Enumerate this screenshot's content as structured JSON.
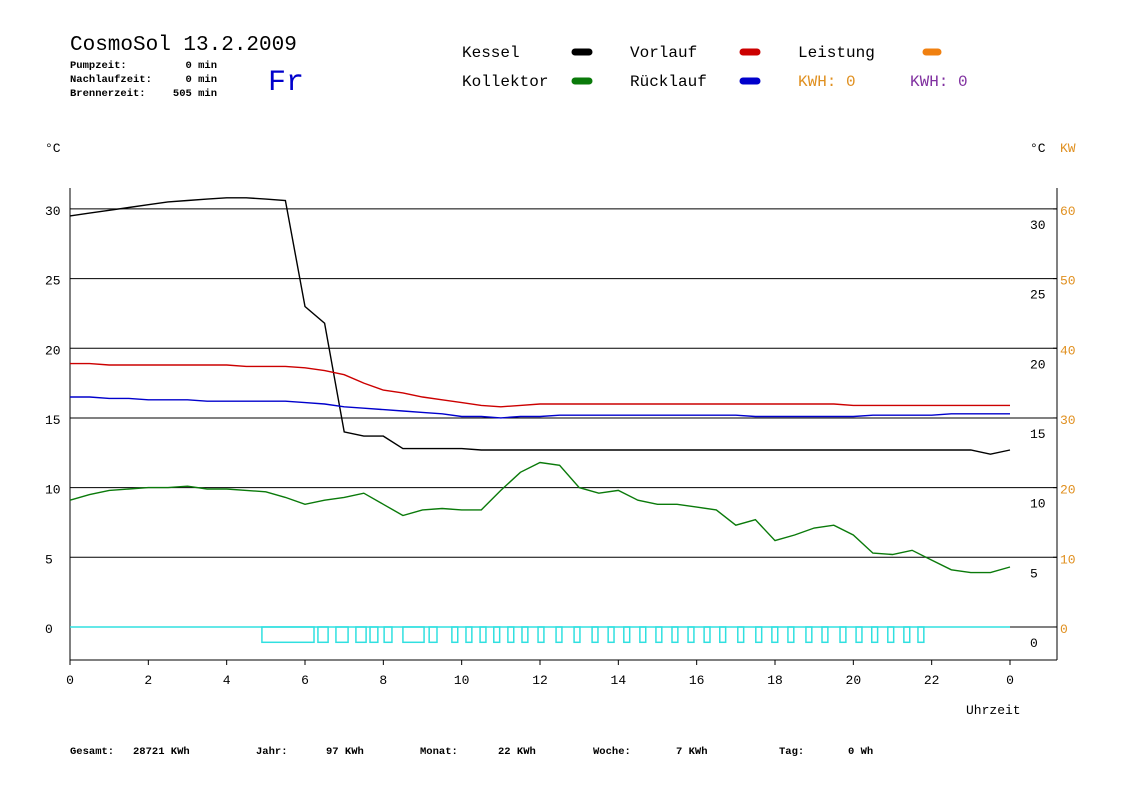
{
  "header": {
    "title": "CosmoSol 13.2.2009",
    "day": "Fr",
    "stats": [
      {
        "label": "Pumpzeit:",
        "value": "0 min"
      },
      {
        "label": "Nachlaufzeit:",
        "value": "0 min"
      },
      {
        "label": "Brennerzeit:",
        "value": "505 min"
      }
    ]
  },
  "footer": [
    {
      "label": "Gesamt:",
      "value": "28721 KWh"
    },
    {
      "label": "Jahr:",
      "value": "97 KWh"
    },
    {
      "label": "Monat:",
      "value": "22 KWh"
    },
    {
      "label": "Woche:",
      "value": "7 KWh"
    },
    {
      "label": "Tag:",
      "value": "0 Wh"
    }
  ],
  "chart_data": {
    "type": "line",
    "y_label": "°C",
    "y2_label": "°C",
    "y2_unit": "KW",
    "x_label": "Uhrzeit",
    "x": [
      0,
      0.5,
      1,
      1.5,
      2,
      2.5,
      3,
      3.5,
      4,
      4.5,
      5,
      5.5,
      6,
      6.5,
      7,
      7.5,
      8,
      8.5,
      9,
      9.5,
      10,
      10.5,
      11,
      11.5,
      12,
      12.5,
      13,
      13.5,
      14,
      14.5,
      15,
      15.5,
      16,
      16.5,
      17,
      17.5,
      18,
      18.5,
      19,
      19.5,
      20,
      20.5,
      21,
      21.5,
      22,
      22.5,
      23,
      23.5,
      24
    ],
    "xlim": [
      0,
      25.2
    ],
    "xticks": [
      0,
      2,
      4,
      6,
      8,
      10,
      12,
      14,
      16,
      18,
      20,
      22,
      {
        "value": 24,
        "label": "0"
      }
    ],
    "ylim": [
      -2.37,
      31.5
    ],
    "yticks": [
      0,
      5,
      10,
      15,
      20,
      25,
      30
    ],
    "y2lim": [
      -4.74,
      63
    ],
    "y2ticks": [
      0,
      10,
      20,
      30,
      40,
      50,
      60
    ],
    "grid": true,
    "series": [
      {
        "name": "Kessel",
        "color": "#000000",
        "values": [
          29.5,
          29.7,
          29.9,
          30.1,
          30.3,
          30.5,
          30.6,
          30.7,
          30.8,
          30.8,
          30.7,
          30.6,
          23,
          21.8,
          14,
          13.7,
          13.7,
          12.8,
          12.8,
          12.8,
          12.8,
          12.7,
          12.7,
          12.7,
          12.7,
          12.7,
          12.7,
          12.7,
          12.7,
          12.7,
          12.7,
          12.7,
          12.7,
          12.7,
          12.7,
          12.7,
          12.7,
          12.7,
          12.7,
          12.7,
          12.7,
          12.7,
          12.7,
          12.7,
          12.7,
          12.7,
          12.7,
          12.4,
          12.7
        ]
      },
      {
        "name": "Kollektor",
        "color": "#0a7a0a",
        "values": [
          9.1,
          9.5,
          9.8,
          9.9,
          10,
          10,
          10.1,
          9.9,
          9.9,
          9.8,
          9.7,
          9.3,
          8.8,
          9.1,
          9.3,
          9.6,
          8.8,
          8,
          8.4,
          8.5,
          8.4,
          8.4,
          9.8,
          11.1,
          11.8,
          11.6,
          10,
          9.6,
          9.8,
          9.1,
          8.8,
          8.8,
          8.6,
          8.4,
          7.3,
          7.7,
          6.2,
          6.6,
          7.1,
          7.3,
          6.6,
          5.3,
          5.2,
          5.5,
          4.8,
          4.1,
          3.9,
          3.9,
          4.3
        ]
      },
      {
        "name": "Vorlauf",
        "color": "#cc0000",
        "values": [
          18.9,
          18.9,
          18.8,
          18.8,
          18.8,
          18.8,
          18.8,
          18.8,
          18.8,
          18.7,
          18.7,
          18.7,
          18.6,
          18.4,
          18.1,
          17.5,
          17,
          16.8,
          16.5,
          16.3,
          16.1,
          15.9,
          15.8,
          15.9,
          16,
          16,
          16,
          16,
          16,
          16,
          16,
          16,
          16,
          16,
          16,
          16,
          16,
          16,
          16,
          16,
          15.9,
          15.9,
          15.9,
          15.9,
          15.9,
          15.9,
          15.9,
          15.9,
          15.9
        ]
      },
      {
        "name": "Rücklauf",
        "color": "#0000cc",
        "values": [
          16.5,
          16.5,
          16.4,
          16.4,
          16.3,
          16.3,
          16.3,
          16.2,
          16.2,
          16.2,
          16.2,
          16.2,
          16.1,
          16,
          15.8,
          15.7,
          15.6,
          15.5,
          15.4,
          15.3,
          15.1,
          15.1,
          15,
          15.1,
          15.1,
          15.2,
          15.2,
          15.2,
          15.2,
          15.2,
          15.2,
          15.2,
          15.2,
          15.2,
          15.2,
          15.1,
          15.1,
          15.1,
          15.1,
          15.1,
          15.1,
          15.2,
          15.2,
          15.2,
          15.2,
          15.3,
          15.3,
          15.3,
          15.3
        ]
      }
    ],
    "legend_extra": {
      "name": "Leistung",
      "color": "#f08010"
    },
    "kwh_labels": [
      {
        "text": "KWH: 0",
        "color": "#e09020"
      },
      {
        "text": "KWH: 0",
        "color": "#8030a0"
      }
    ],
    "pump_color": "#30e0e0",
    "pump_depth": -1.1,
    "pump_on": [
      [
        4.9,
        6.23
      ],
      [
        6.33,
        6.59
      ],
      [
        6.79,
        7.1
      ],
      [
        7.3,
        7.56
      ],
      [
        7.66,
        7.86
      ],
      [
        8.02,
        8.22
      ],
      [
        8.5,
        9.04
      ],
      [
        9.17,
        9.37
      ],
      [
        9.75,
        9.9
      ],
      [
        10.11,
        10.26
      ],
      [
        10.47,
        10.62
      ],
      [
        10.82,
        10.97
      ],
      [
        11.18,
        11.33
      ],
      [
        11.54,
        11.69
      ],
      [
        11.95,
        12.1
      ],
      [
        12.41,
        12.56
      ],
      [
        12.87,
        13.02
      ],
      [
        13.33,
        13.48
      ],
      [
        13.74,
        13.89
      ],
      [
        14.14,
        14.29
      ],
      [
        14.55,
        14.7
      ],
      [
        14.96,
        15.11
      ],
      [
        15.37,
        15.52
      ],
      [
        15.78,
        15.93
      ],
      [
        16.19,
        16.34
      ],
      [
        16.59,
        16.74
      ],
      [
        17.05,
        17.2
      ],
      [
        17.51,
        17.66
      ],
      [
        17.92,
        18.07
      ],
      [
        18.33,
        18.48
      ],
      [
        18.79,
        18.94
      ],
      [
        19.2,
        19.35
      ],
      [
        19.66,
        19.81
      ],
      [
        20.07,
        20.22
      ],
      [
        20.47,
        20.62
      ],
      [
        20.88,
        21.03
      ],
      [
        21.29,
        21.44
      ],
      [
        21.65,
        21.8
      ]
    ]
  }
}
